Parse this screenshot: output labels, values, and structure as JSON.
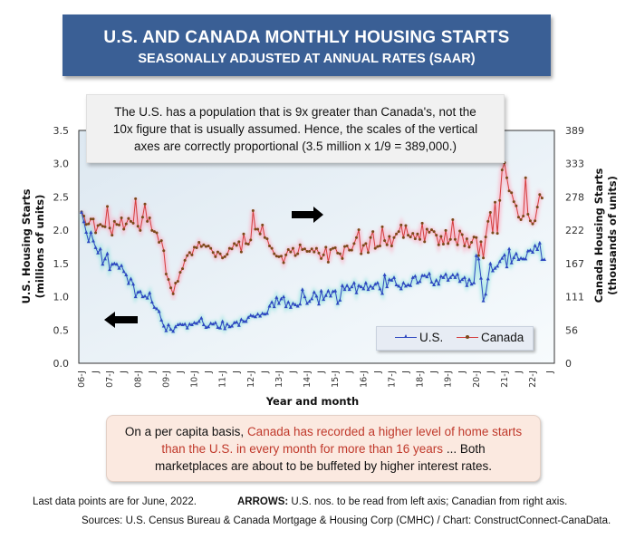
{
  "header": {
    "title": "U.S. AND CANADA MONTHLY HOUSING STARTS",
    "subtitle": "SEASONALLY ADJUSTED AT ANNUAL RATES (SAAR)"
  },
  "note": {
    "line1": "The U.S. has a population that is 9x greater than Canada's, not the",
    "line2": "10x figure that is usually assumed. Hence, the scales of the vertical",
    "line3": "axes are correctly proportional (3.5 million x 1/9 = 389,000.)"
  },
  "callout": {
    "prefix": "On a per capita basis, ",
    "highlight_line1": "Canada has recorded a higher level of home starts",
    "highlight_line2": "than the U.S. in every month for more than 16 years",
    "suffix_line2": " ... Both",
    "line3": "marketplaces are about to be buffeted by higher interest rates.",
    "highlight_color": "#c0392b"
  },
  "footer": {
    "last_data": "Last data points are for June, 2022.",
    "arrows_label": "ARROWS:",
    "arrows_text": " U.S. nos. to be read from left axis; Canadian from right axis.",
    "sources": "Sources: U.S. Census Bureau & Canada Mortgage & Housing Corp (CMHC) / Chart: ConstructConnect-CanaData."
  },
  "icons": {
    "left_arrow": "arrow-left-icon",
    "right_arrow": "arrow-right-icon"
  },
  "chart_data": {
    "type": "line",
    "title": "U.S. AND CANADA MONTHLY HOUSING STARTS",
    "subtitle": "SEASONALLY ADJUSTED AT ANNUAL RATES (SAAR)",
    "xlabel": "Year and month",
    "ylabel_left": "U.S. Housing Starts (millions of units)",
    "ylabel_right": "Canada Housing Starts (thousands of units)",
    "ylim_left": [
      0,
      3.5
    ],
    "ylim_right": [
      0,
      389
    ],
    "yticks_left": [
      "0.0",
      "0.5",
      "1.0",
      "1.5",
      "2.0",
      "2.5",
      "3.0",
      "3.5"
    ],
    "yticks_right": [
      "0",
      "56",
      "111",
      "167",
      "222",
      "278",
      "333",
      "389"
    ],
    "x_start": "2006-01",
    "x_end": "2022-06",
    "xtick_labels": [
      "06-J",
      "J",
      "07-J",
      "J",
      "08-J",
      "J",
      "09-J",
      "J",
      "10-J",
      "J",
      "11-J",
      "J",
      "12-J",
      "J",
      "13-J",
      "J",
      "14-J",
      "J",
      "15-J",
      "J",
      "16-J",
      "J",
      "17-J",
      "J",
      "18-J",
      "J",
      "19-J",
      "J",
      "20-J",
      "J",
      "21-J",
      "J",
      "22-J",
      "J"
    ],
    "grid": false,
    "legend_position": "bottom-right",
    "series": [
      {
        "name": "U.S.",
        "axis": "left",
        "units": "millions of units",
        "color": "#2e47c0",
        "marker": "triangle",
        "values": [
          2.27,
          2.13,
          1.97,
          1.83,
          1.97,
          1.84,
          1.74,
          1.66,
          1.72,
          1.49,
          1.57,
          1.65,
          1.41,
          1.49,
          1.5,
          1.49,
          1.43,
          1.47,
          1.38,
          1.33,
          1.2,
          1.27,
          1.19,
          1.0,
          1.07,
          1.08,
          1.0,
          1.01,
          0.98,
          1.06,
          0.92,
          0.84,
          0.82,
          0.78,
          0.65,
          0.56,
          0.49,
          0.58,
          0.51,
          0.48,
          0.55,
          0.58,
          0.59,
          0.58,
          0.59,
          0.53,
          0.59,
          0.58,
          0.61,
          0.6,
          0.63,
          0.68,
          0.58,
          0.54,
          0.55,
          0.6,
          0.59,
          0.61,
          0.54,
          0.53,
          0.63,
          0.52,
          0.59,
          0.55,
          0.56,
          0.61,
          0.62,
          0.57,
          0.66,
          0.63,
          0.63,
          0.69,
          0.72,
          0.71,
          0.7,
          0.74,
          0.71,
          0.75,
          0.74,
          0.75,
          0.86,
          0.92,
          0.85,
          0.99,
          0.9,
          0.97,
          1.0,
          0.85,
          0.92,
          0.84,
          0.9,
          0.88,
          0.86,
          0.89,
          1.11,
          1.0,
          0.9,
          0.93,
          0.97,
          1.07,
          1.01,
          0.89,
          1.09,
          0.96,
          1.02,
          1.09,
          1.01,
          1.08,
          1.09,
          0.9,
          0.95,
          1.17,
          1.11,
          1.17,
          1.11,
          1.15,
          1.21,
          1.06,
          1.17,
          1.15,
          1.12,
          1.21,
          1.11,
          1.16,
          1.13,
          1.19,
          1.21,
          1.12,
          1.05,
          1.33,
          1.15,
          1.26,
          1.25,
          1.29,
          1.18,
          1.16,
          1.12,
          1.21,
          1.16,
          1.18,
          1.17,
          1.29,
          1.31,
          1.21,
          1.23,
          1.32,
          1.32,
          1.3,
          1.35,
          1.22,
          1.18,
          1.25,
          1.19,
          1.31,
          1.29,
          1.34,
          1.25,
          1.29,
          1.33,
          1.29,
          1.34,
          1.23,
          1.26,
          1.29,
          1.17,
          1.26,
          1.19,
          1.21,
          1.62,
          1.57,
          1.28,
          0.94,
          1.04,
          1.27,
          1.5,
          1.39,
          1.43,
          1.46,
          1.53,
          1.58,
          1.63,
          1.45,
          1.72,
          1.51,
          1.59,
          1.65,
          1.56,
          1.58,
          1.57,
          1.57,
          1.69,
          1.7,
          1.67,
          1.77,
          1.71,
          1.81,
          1.56,
          1.56
        ]
      },
      {
        "name": "Canada",
        "axis": "right",
        "units": "thousands of units",
        "color": "#d43c3c",
        "marker": "dot",
        "values": [
          253,
          246,
          232,
          233,
          241,
          241,
          218,
          230,
          232,
          229,
          228,
          262,
          226,
          214,
          237,
          232,
          231,
          243,
          224,
          233,
          242,
          237,
          234,
          275,
          229,
          222,
          244,
          266,
          237,
          243,
          222,
          220,
          218,
          202,
          205,
          188,
          149,
          140,
          126,
          116,
          134,
          137,
          152,
          158,
          172,
          180,
          185,
          181,
          194,
          193,
          202,
          195,
          198,
          195,
          196,
          192,
          185,
          178,
          186,
          183,
          176,
          178,
          182,
          192,
          191,
          200,
          197,
          203,
          186,
          216,
          200,
          199,
          206,
          255,
          224,
          224,
          216,
          231,
          210,
          208,
          196,
          192,
          183,
          179,
          178,
          179,
          168,
          181,
          190,
          186,
          192,
          180,
          183,
          198,
          190,
          191,
          187,
          187,
          191,
          186,
          192,
          184,
          175,
          181,
          194,
          169,
          190,
          192,
          193,
          184,
          183,
          175,
          195,
          196,
          189,
          189,
          200,
          210,
          223,
          183,
          197,
          200,
          185,
          210,
          220,
          192,
          195,
          196,
          228,
          205,
          198,
          212,
          196,
          210,
          216,
          220,
          231,
          210,
          230,
          214,
          211,
          217,
          208,
          216,
          207,
          234,
          203,
          224,
          219,
          223,
          220,
          214,
          198,
          212,
          199,
          222,
          200,
          207,
          240,
          207,
          198,
          221,
          215,
          196,
          208,
          194,
          202,
          211,
          210,
          180,
          203,
          176,
          211,
          237,
          252,
          218,
          269,
          217,
          272,
          323,
          335,
          310,
          288,
          285,
          270,
          263,
          244,
          240,
          246,
          310,
          249,
          238,
          233,
          238,
          261,
          282,
          276
        ]
      }
    ]
  }
}
